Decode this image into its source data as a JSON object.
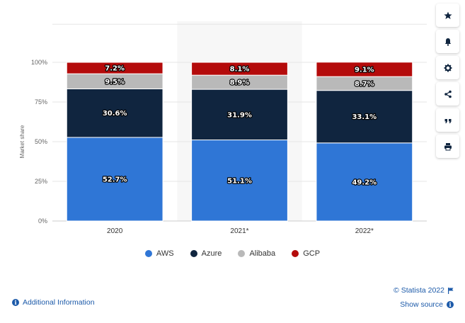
{
  "chart_data": {
    "type": "bar",
    "stacked": true,
    "categories": [
      "2020",
      "2021*",
      "2022*"
    ],
    "series": [
      {
        "name": "AWS",
        "color": "#2f76d6",
        "values": [
          52.7,
          51.1,
          49.2
        ]
      },
      {
        "name": "Azure",
        "color": "#10253f",
        "values": [
          30.6,
          31.9,
          33.1
        ]
      },
      {
        "name": "Alibaba",
        "color": "#b9b9b9",
        "values": [
          9.5,
          8.9,
          8.7
        ]
      },
      {
        "name": "GCP",
        "color": "#b40b0b",
        "values": [
          7.2,
          8.1,
          9.1
        ]
      }
    ],
    "data_labels": [
      [
        "52.7%",
        "51.1%",
        "49.2%"
      ],
      [
        "30.6%",
        "31.9%",
        "33.1%"
      ],
      [
        "9.5%",
        "8.9%",
        "8.7%"
      ],
      [
        "7.2%",
        "8.1%",
        "9.1%"
      ]
    ],
    "ylabel": "Market share",
    "xlabel": "",
    "ylim": [
      0,
      100
    ],
    "yticks": [
      0,
      25,
      50,
      75,
      100
    ],
    "ytick_labels": [
      "0%",
      "25%",
      "50%",
      "75%",
      "100%"
    ],
    "grid": true,
    "highlighted_category": "2021*",
    "legend_position": "bottom"
  },
  "legend": [
    {
      "label": "AWS",
      "color": "#2f76d6"
    },
    {
      "label": "Azure",
      "color": "#10253f"
    },
    {
      "label": "Alibaba",
      "color": "#b9b9b9"
    },
    {
      "label": "GCP",
      "color": "#b40b0b"
    }
  ],
  "footer": {
    "additional_info": "Additional Information",
    "credits": "© Statista 2022",
    "show_source": "Show source"
  },
  "toolbar": {
    "icons": [
      "star-icon",
      "bell-icon",
      "gear-icon",
      "share-icon",
      "quote-icon",
      "print-icon"
    ]
  }
}
